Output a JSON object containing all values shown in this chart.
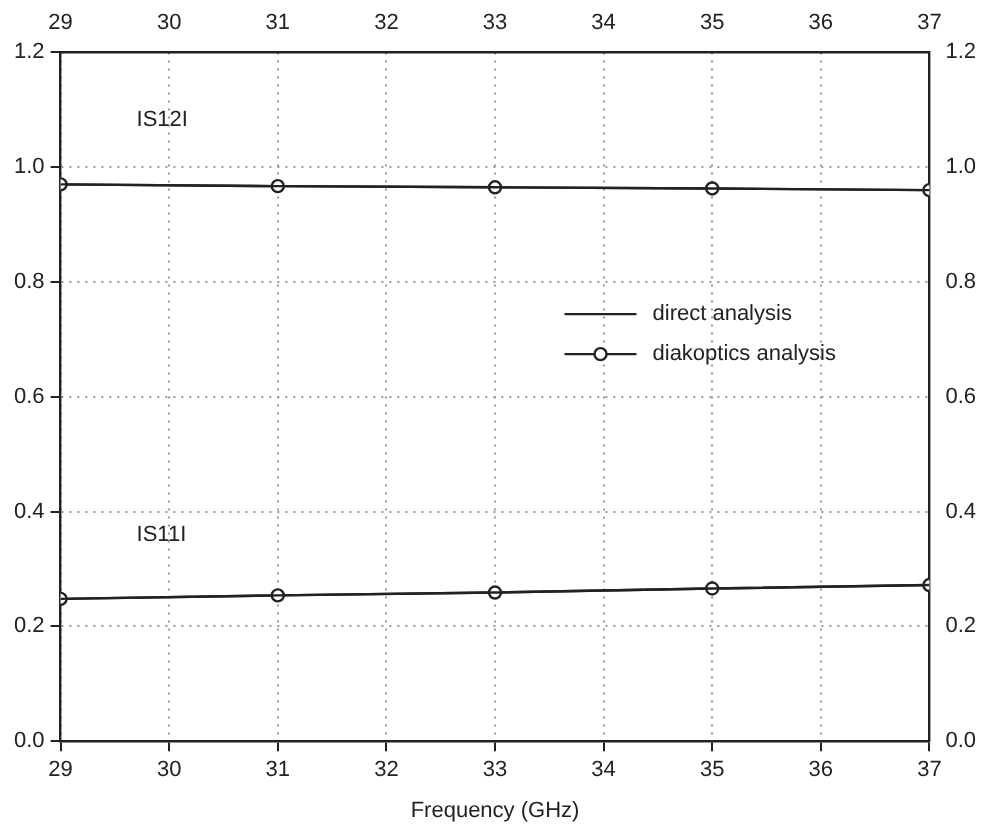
{
  "chart_data": {
    "type": "line",
    "xlabel": "Frequency (GHz)",
    "x": [
      29,
      31,
      33,
      35,
      37
    ],
    "series": [
      {
        "name": "diakoptics analysis",
        "color": "#222222",
        "values": [
          0.97,
          0.967,
          0.965,
          0.963,
          0.96
        ],
        "marker": "circle"
      },
      {
        "name": "direct analysis",
        "color": "#222222",
        "values": [
          0.97,
          0.967,
          0.965,
          0.963,
          0.96
        ],
        "marker": "none"
      },
      {
        "color": "#222222",
        "values": [
          0.248,
          0.254,
          0.259,
          0.266,
          0.272
        ],
        "marker": "circle"
      },
      {
        "color": "#222222",
        "values": [
          0.248,
          0.254,
          0.259,
          0.266,
          0.272
        ],
        "marker": "none"
      }
    ],
    "xlim": [
      29,
      37
    ],
    "xticks": [
      29,
      30,
      31,
      32,
      33,
      34,
      35,
      36,
      37
    ],
    "x2lim": [
      29,
      37
    ],
    "x2ticks": [
      29,
      30,
      31,
      32,
      33,
      34,
      35,
      36,
      37
    ],
    "ylim": [
      0,
      1.2
    ],
    "yticks": [
      {
        "value": 0,
        "label": "0.0"
      },
      0.2,
      0.4,
      0.6,
      0.8,
      {
        "value": 1,
        "label": "1.0"
      },
      1.2
    ],
    "y2lim": [
      0,
      1.2
    ],
    "y2ticks": [
      {
        "value": 0,
        "label": "0.0"
      },
      0.2,
      0.4,
      0.6,
      0.8,
      {
        "value": 1,
        "label": "1.0"
      },
      1.2
    ],
    "annotations": [
      "IS12I",
      "IS11I"
    ],
    "grid": true,
    "legend": "right",
    "line_style": "solid"
  }
}
